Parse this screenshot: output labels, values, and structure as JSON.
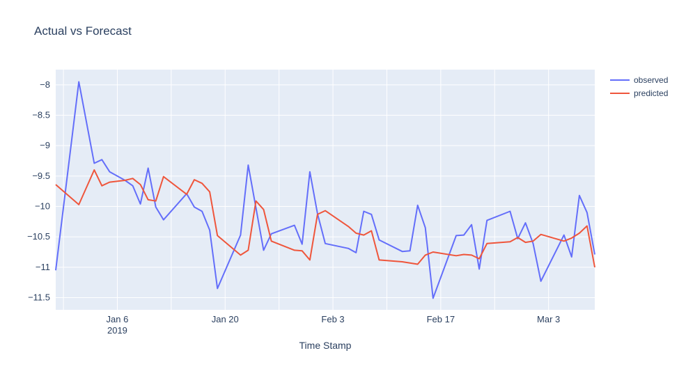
{
  "chart_data": {
    "type": "line",
    "title": "Actual vs Forecast",
    "xlabel": "Time Stamp",
    "ylabel": "",
    "x_range": [
      "2018-12-29",
      "2019-03-09"
    ],
    "ylim": [
      -11.7,
      -7.75
    ],
    "y_ticks": [
      -8,
      -8.5,
      -9,
      -9.5,
      -10,
      -10.5,
      -11,
      -11.5
    ],
    "y_tick_labels": [
      "−8",
      "−8.5",
      "−9",
      "−9.5",
      "−10",
      "−10.5",
      "−11",
      "−11.5"
    ],
    "x_ticks": [
      {
        "date": "2019-01-06",
        "label": "Jan 6",
        "sublabel": "2019"
      },
      {
        "date": "2019-01-20",
        "label": "Jan 20",
        "sublabel": ""
      },
      {
        "date": "2019-02-03",
        "label": "Feb 3",
        "sublabel": ""
      },
      {
        "date": "2019-02-17",
        "label": "Feb 17",
        "sublabel": ""
      },
      {
        "date": "2019-03-03",
        "label": "Mar 3",
        "sublabel": ""
      }
    ],
    "grid": true,
    "legend_position": "top-right",
    "plot_background": "#e5ecf6",
    "series": [
      {
        "name": "observed",
        "color": "#636efa",
        "points": [
          [
            "2018-12-29",
            -11.05
          ],
          [
            "2019-01-01",
            -7.95
          ],
          [
            "2019-01-03",
            -9.29
          ],
          [
            "2019-01-04",
            -9.23
          ],
          [
            "2019-01-05",
            -9.43
          ],
          [
            "2019-01-07",
            -9.57
          ],
          [
            "2019-01-08",
            -9.66
          ],
          [
            "2019-01-09",
            -9.96
          ],
          [
            "2019-01-10",
            -9.37
          ],
          [
            "2019-01-11",
            -10.01
          ],
          [
            "2019-01-12",
            -10.22
          ],
          [
            "2019-01-15",
            -9.79
          ],
          [
            "2019-01-16",
            -10.01
          ],
          [
            "2019-01-17",
            -10.08
          ],
          [
            "2019-01-18",
            -10.39
          ],
          [
            "2019-01-19",
            -11.35
          ],
          [
            "2019-01-22",
            -10.47
          ],
          [
            "2019-01-23",
            -9.32
          ],
          [
            "2019-01-25",
            -10.72
          ],
          [
            "2019-01-26",
            -10.45
          ],
          [
            "2019-01-29",
            -10.31
          ],
          [
            "2019-01-30",
            -10.62
          ],
          [
            "2019-01-31",
            -9.43
          ],
          [
            "2019-02-01",
            -10.12
          ],
          [
            "2019-02-02",
            -10.61
          ],
          [
            "2019-02-05",
            -10.69
          ],
          [
            "2019-02-06",
            -10.76
          ],
          [
            "2019-02-07",
            -10.08
          ],
          [
            "2019-02-08",
            -10.13
          ],
          [
            "2019-02-09",
            -10.55
          ],
          [
            "2019-02-12",
            -10.74
          ],
          [
            "2019-02-13",
            -10.73
          ],
          [
            "2019-02-14",
            -9.98
          ],
          [
            "2019-02-15",
            -10.35
          ],
          [
            "2019-02-16",
            -11.51
          ],
          [
            "2019-02-19",
            -10.48
          ],
          [
            "2019-02-20",
            -10.47
          ],
          [
            "2019-02-21",
            -10.3
          ],
          [
            "2019-02-22",
            -11.03
          ],
          [
            "2019-02-23",
            -10.23
          ],
          [
            "2019-02-26",
            -10.08
          ],
          [
            "2019-02-27",
            -10.53
          ],
          [
            "2019-02-28",
            -10.27
          ],
          [
            "2019-03-01",
            -10.61
          ],
          [
            "2019-03-02",
            -11.23
          ],
          [
            "2019-03-05",
            -10.47
          ],
          [
            "2019-03-06",
            -10.83
          ],
          [
            "2019-03-07",
            -9.82
          ],
          [
            "2019-03-08",
            -10.1
          ],
          [
            "2019-03-09",
            -10.79
          ]
        ]
      },
      {
        "name": "predicted",
        "color": "#ef553b",
        "points": [
          [
            "2018-12-29",
            -9.64
          ],
          [
            "2019-01-01",
            -9.97
          ],
          [
            "2019-01-03",
            -9.4
          ],
          [
            "2019-01-04",
            -9.66
          ],
          [
            "2019-01-05",
            -9.6
          ],
          [
            "2019-01-07",
            -9.57
          ],
          [
            "2019-01-08",
            -9.54
          ],
          [
            "2019-01-09",
            -9.64
          ],
          [
            "2019-01-10",
            -9.89
          ],
          [
            "2019-01-11",
            -9.91
          ],
          [
            "2019-01-12",
            -9.51
          ],
          [
            "2019-01-15",
            -9.8
          ],
          [
            "2019-01-16",
            -9.56
          ],
          [
            "2019-01-17",
            -9.62
          ],
          [
            "2019-01-18",
            -9.76
          ],
          [
            "2019-01-19",
            -10.48
          ],
          [
            "2019-01-22",
            -10.8
          ],
          [
            "2019-01-23",
            -10.72
          ],
          [
            "2019-01-24",
            -9.91
          ],
          [
            "2019-01-25",
            -10.05
          ],
          [
            "2019-01-26",
            -10.57
          ],
          [
            "2019-01-29",
            -10.72
          ],
          [
            "2019-01-30",
            -10.73
          ],
          [
            "2019-01-31",
            -10.88
          ],
          [
            "2019-02-01",
            -10.13
          ],
          [
            "2019-02-02",
            -10.07
          ],
          [
            "2019-02-05",
            -10.33
          ],
          [
            "2019-02-06",
            -10.44
          ],
          [
            "2019-02-07",
            -10.47
          ],
          [
            "2019-02-08",
            -10.4
          ],
          [
            "2019-02-09",
            -10.88
          ],
          [
            "2019-02-12",
            -10.91
          ],
          [
            "2019-02-14",
            -10.95
          ],
          [
            "2019-02-15",
            -10.8
          ],
          [
            "2019-02-16",
            -10.75
          ],
          [
            "2019-02-19",
            -10.81
          ],
          [
            "2019-02-20",
            -10.79
          ],
          [
            "2019-02-21",
            -10.8
          ],
          [
            "2019-02-22",
            -10.86
          ],
          [
            "2019-02-23",
            -10.61
          ],
          [
            "2019-02-26",
            -10.58
          ],
          [
            "2019-02-27",
            -10.51
          ],
          [
            "2019-02-28",
            -10.59
          ],
          [
            "2019-03-01",
            -10.57
          ],
          [
            "2019-03-02",
            -10.46
          ],
          [
            "2019-03-05",
            -10.57
          ],
          [
            "2019-03-06",
            -10.52
          ],
          [
            "2019-03-07",
            -10.44
          ],
          [
            "2019-03-08",
            -10.32
          ],
          [
            "2019-03-09",
            -11.0
          ]
        ]
      }
    ]
  }
}
